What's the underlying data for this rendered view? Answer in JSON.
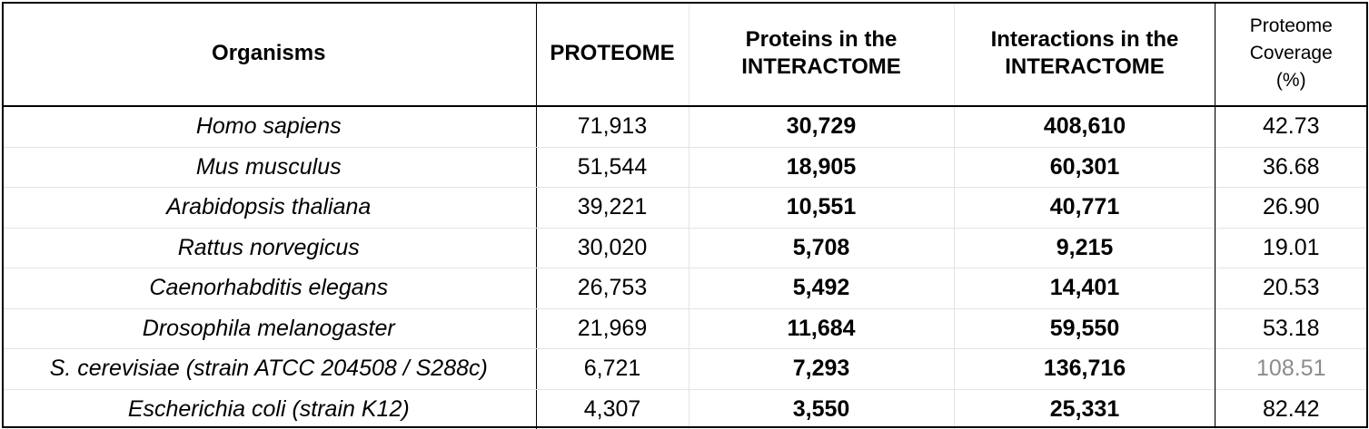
{
  "table": {
    "headers": {
      "organisms": "Organisms",
      "proteome": "PROTEOME",
      "proteins_line1": "Proteins in the",
      "proteins_line2": "INTERACTOME",
      "interactions_line1": "Interactions in the",
      "interactions_line2": "INTERACTOME",
      "coverage_line1": "Proteome",
      "coverage_line2": "Coverage",
      "coverage_line3": "(%)"
    },
    "rows": [
      {
        "organism": "Homo sapiens",
        "proteome": "71,913",
        "proteins": "30,729",
        "interactions": "408,610",
        "coverage": "42.73"
      },
      {
        "organism": "Mus musculus",
        "proteome": "51,544",
        "proteins": "18,905",
        "interactions": "60,301",
        "coverage": "36.68"
      },
      {
        "organism": "Arabidopsis thaliana",
        "proteome": "39,221",
        "proteins": "10,551",
        "interactions": "40,771",
        "coverage": "26.90"
      },
      {
        "organism": "Rattus norvegicus",
        "proteome": "30,020",
        "proteins": "5,708",
        "interactions": "9,215",
        "coverage": "19.01"
      },
      {
        "organism": "Caenorhabditis elegans",
        "proteome": "26,753",
        "proteins": "5,492",
        "interactions": "14,401",
        "coverage": "20.53"
      },
      {
        "organism": "Drosophila melanogaster",
        "proteome": "21,969",
        "proteins": "11,684",
        "interactions": "59,550",
        "coverage": "53.18"
      },
      {
        "organism": "S. cerevisiae (strain ATCC 204508 / S288c)",
        "proteome": "6,721",
        "proteins": "7,293",
        "interactions": "136,716",
        "coverage": "108.51"
      },
      {
        "organism": "Escherichia coli (strain K12)",
        "proteome": "4,307",
        "proteins": "3,550",
        "interactions": "25,331",
        "coverage": "82.42"
      }
    ],
    "muted_coverage_color": "#8c8c8c"
  }
}
